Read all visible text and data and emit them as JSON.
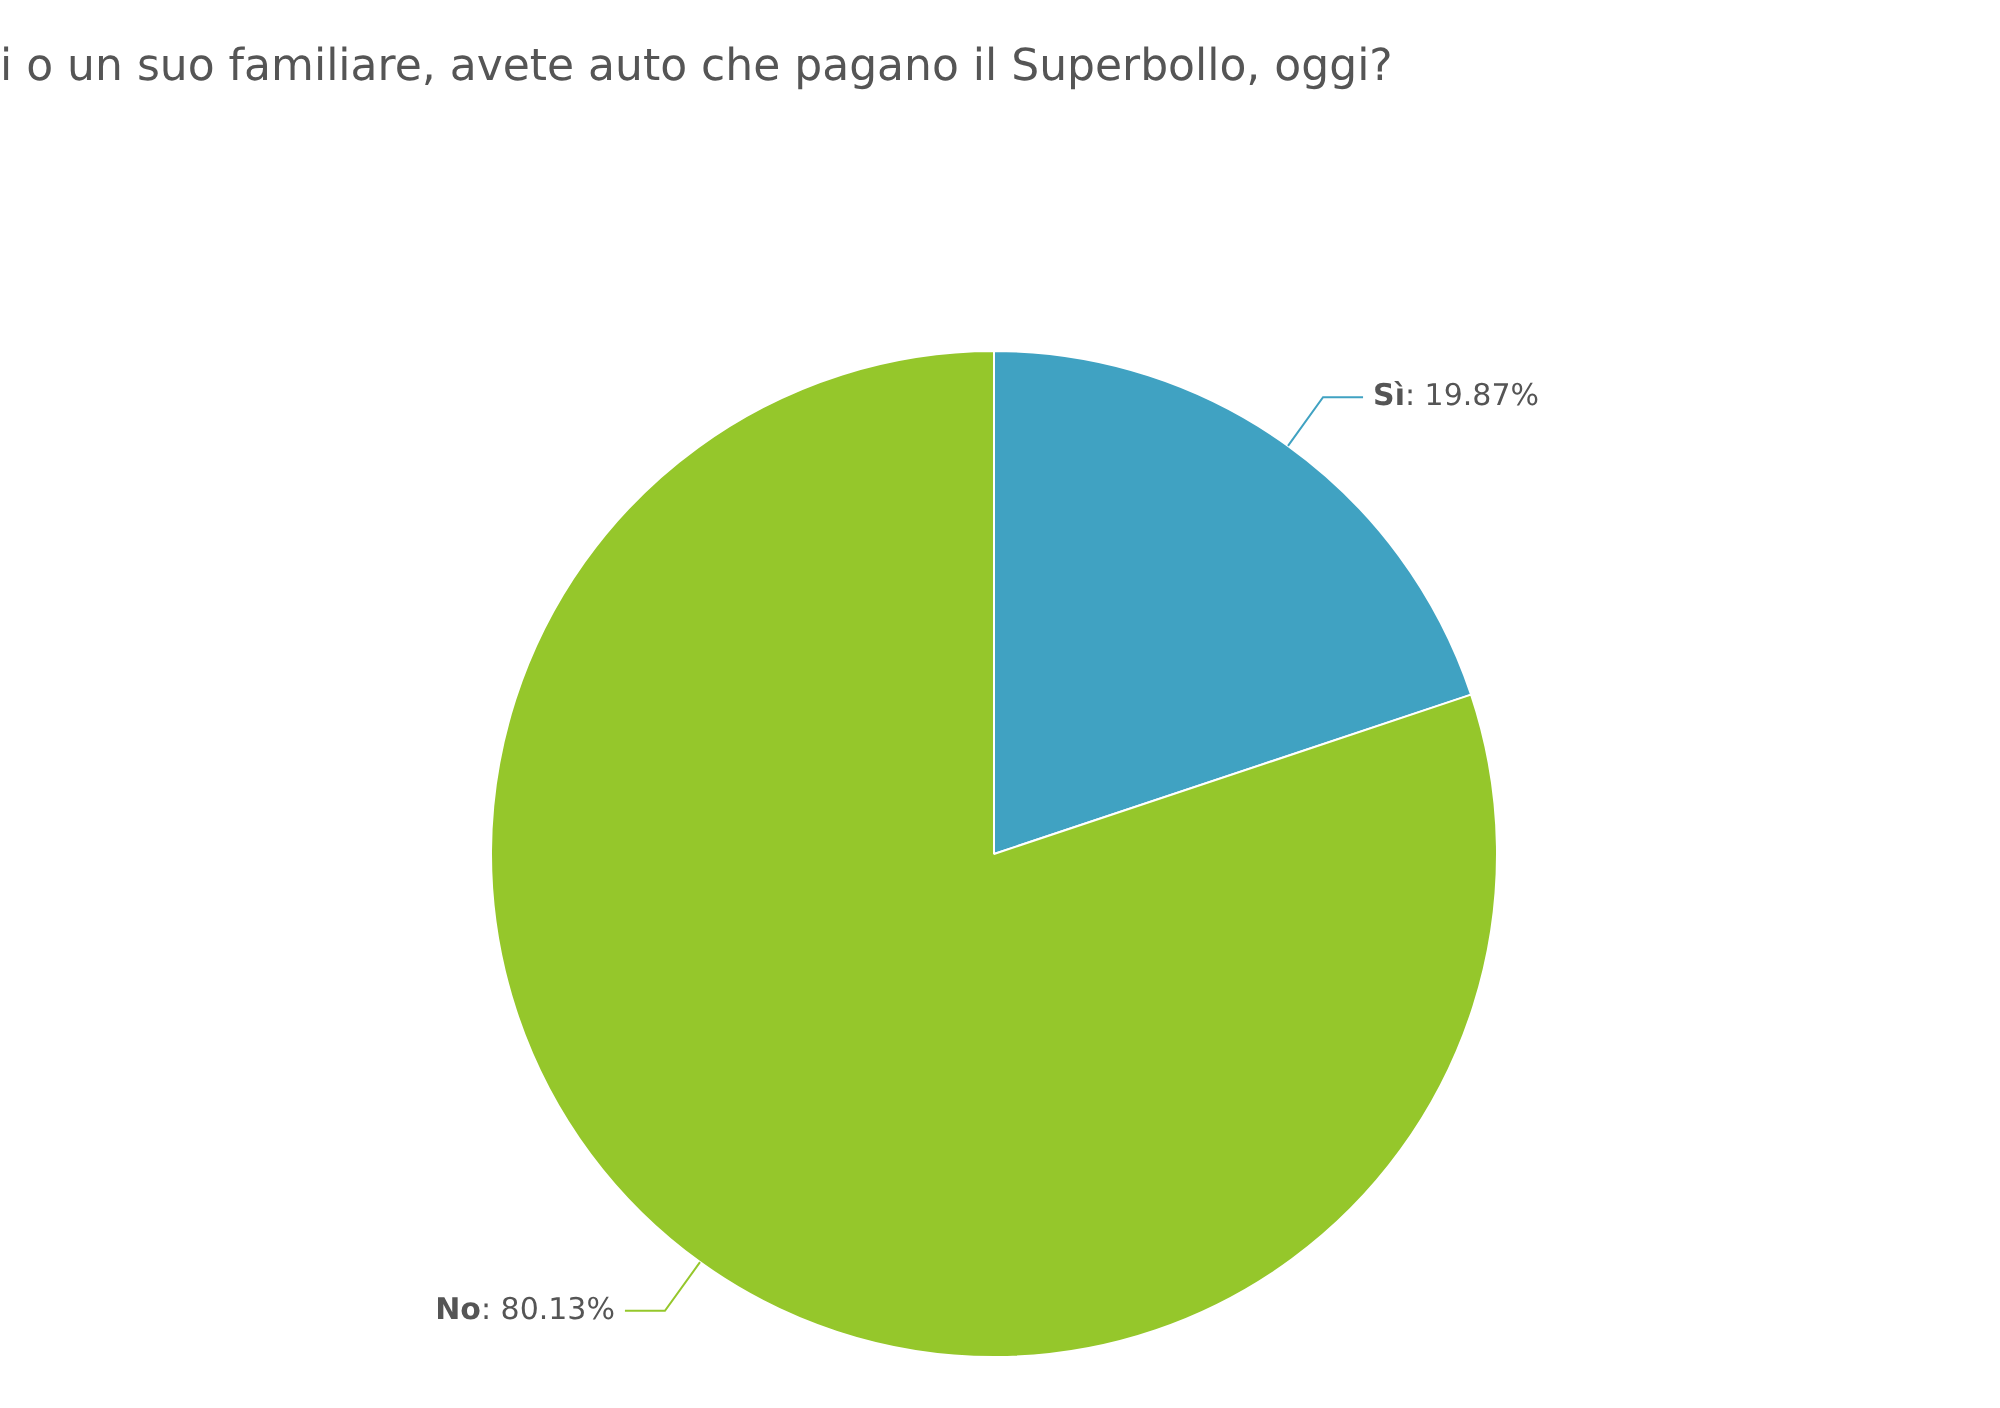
{
  "chart_data": {
    "type": "pie",
    "title": "i o un suo familiare, avete auto che pagano il Superbollo, oggi?",
    "categories": [
      "Sì",
      "No"
    ],
    "values": [
      19.87,
      80.13
    ],
    "value_labels": [
      ": 19.87%",
      ": 80.13%"
    ],
    "colors": [
      "#40a2c2",
      "#95c72b"
    ],
    "legend": false
  }
}
